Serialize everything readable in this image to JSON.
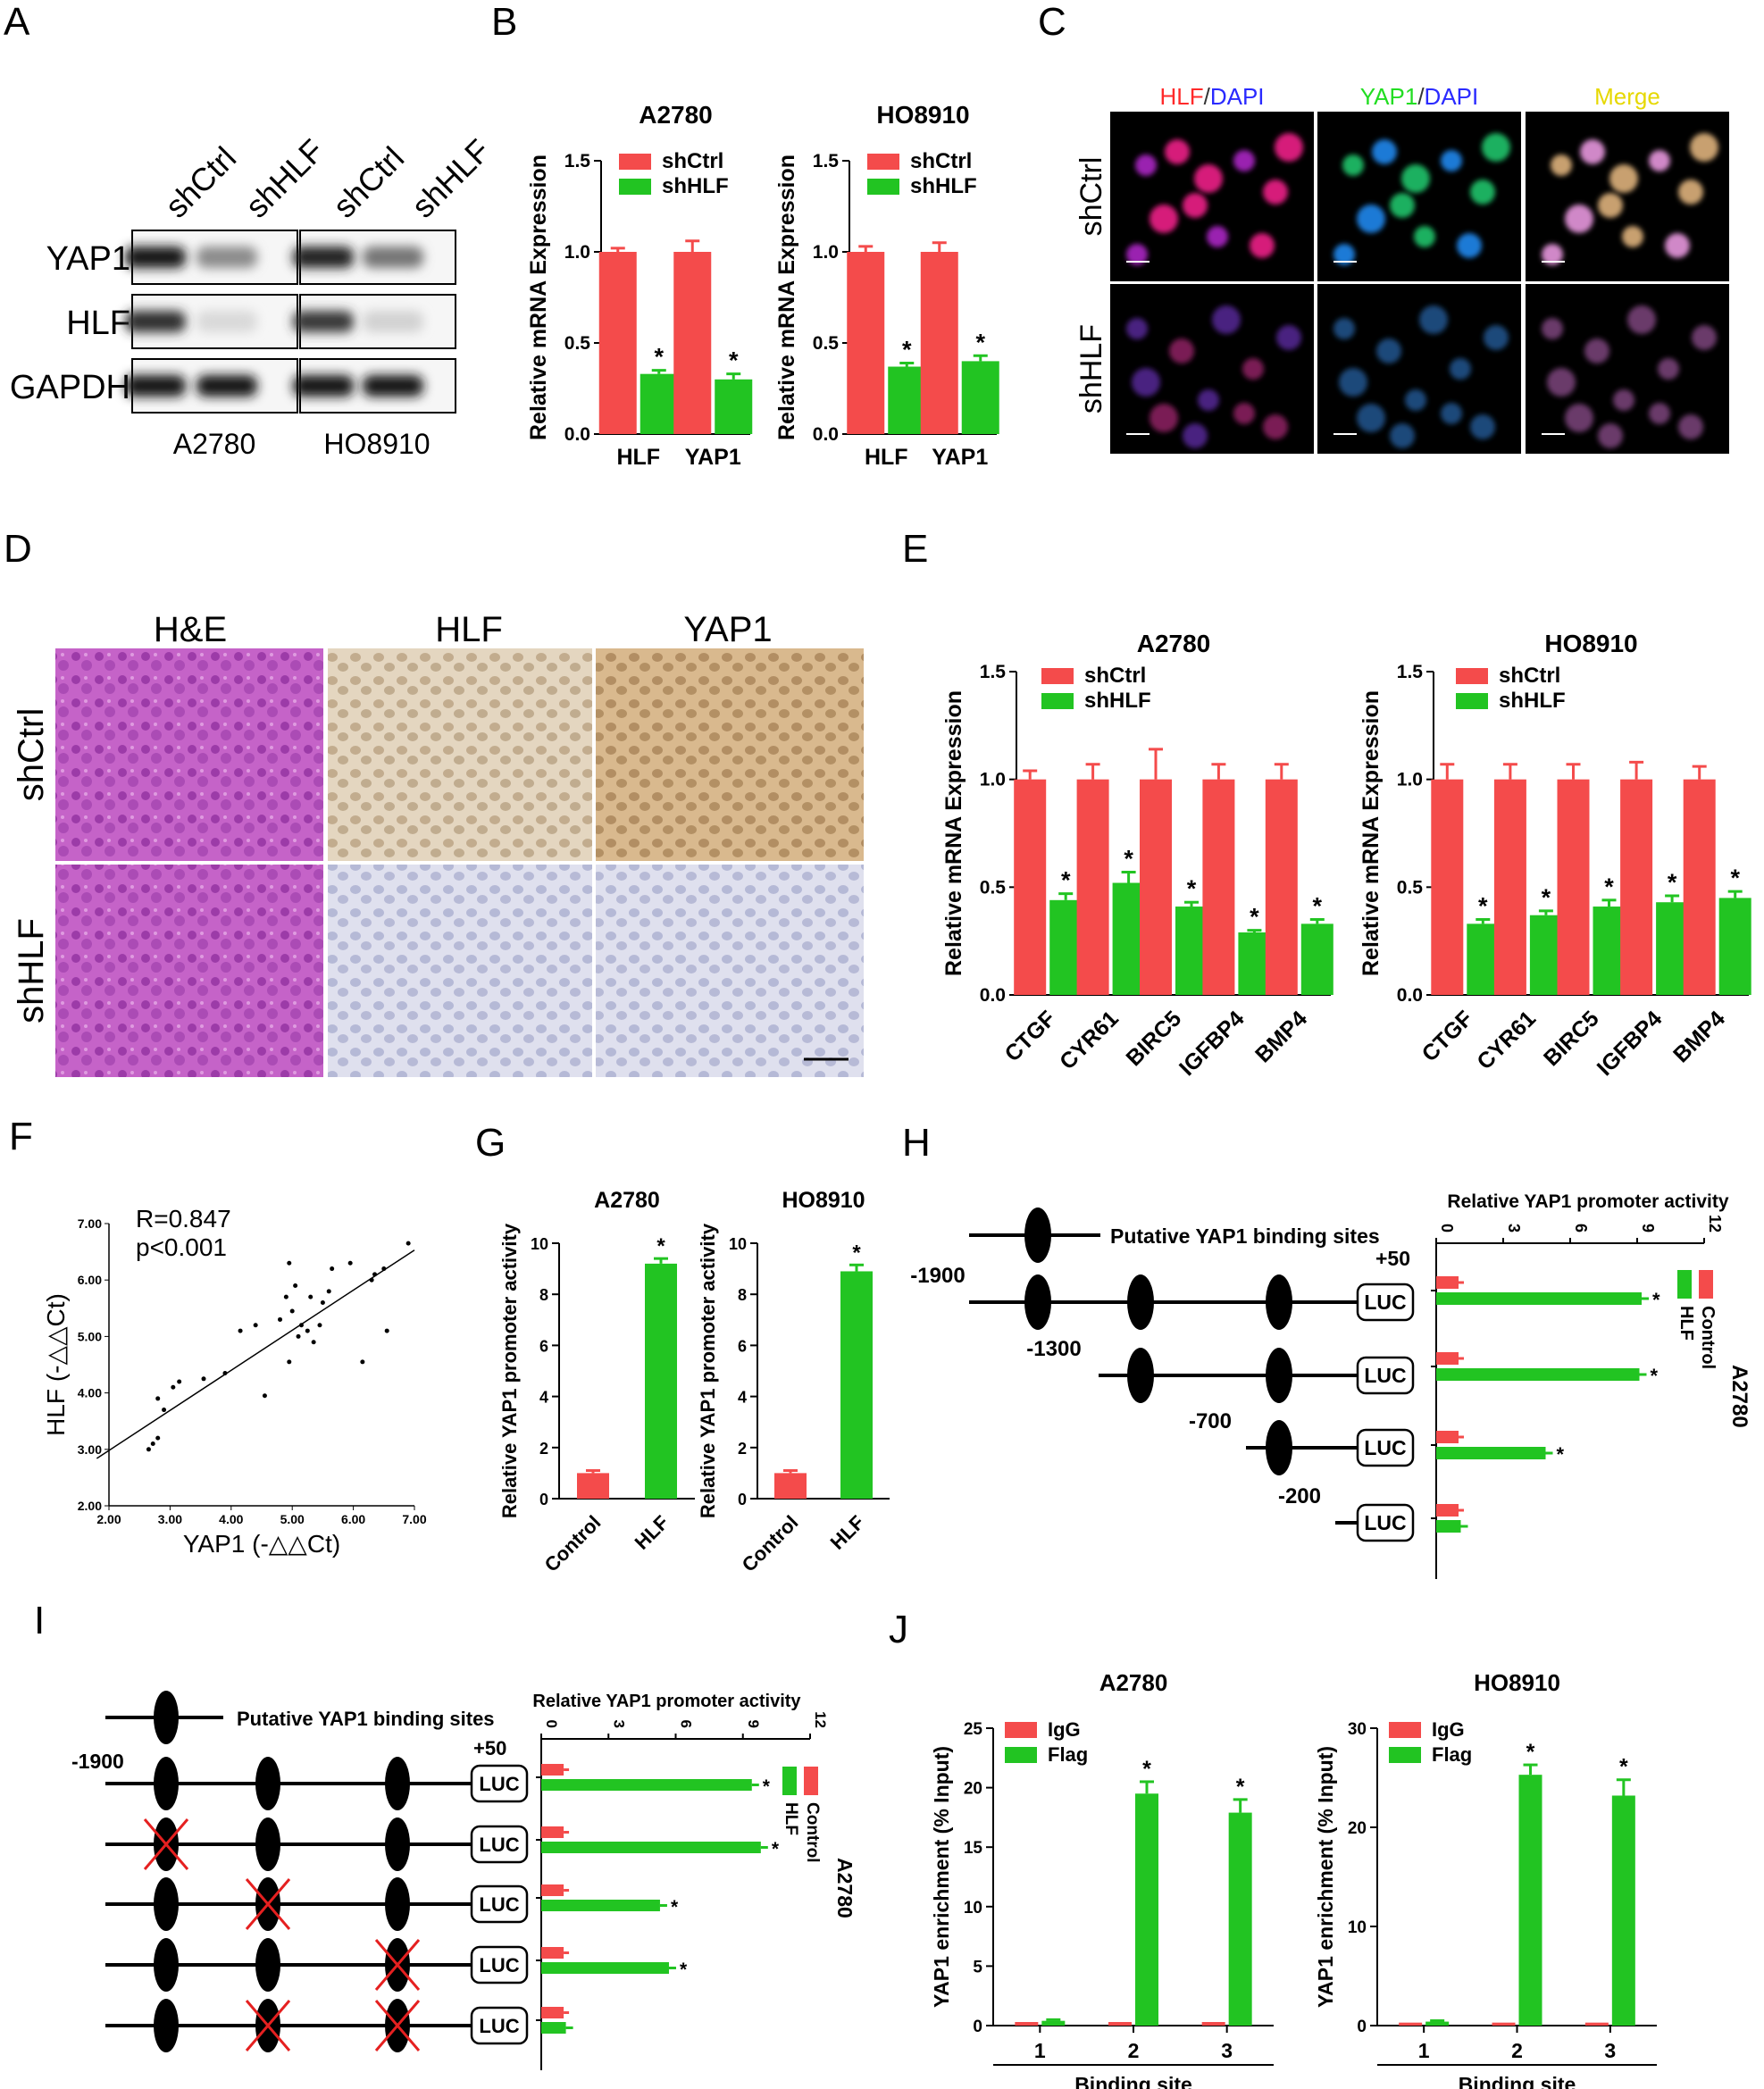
{
  "colors": {
    "red": "#f44b4b",
    "green": "#22c422",
    "black": "#111111",
    "micro_bg": "#000000"
  },
  "panels": {
    "A": "A",
    "B": "B",
    "C": "C",
    "D": "D",
    "E": "E",
    "F": "F",
    "G": "G",
    "H": "H",
    "I": "I",
    "J": "J"
  },
  "panelA": {
    "col_labels": [
      "shCtrl",
      "shHLF",
      "shCtrl",
      "shHLF"
    ],
    "row_labels": [
      "YAP1",
      "HLF",
      "GAPDH"
    ],
    "cell_lines": [
      "A2780",
      "HO8910"
    ],
    "band_intensity": [
      [
        0.95,
        0.45,
        0.9,
        0.55
      ],
      [
        0.85,
        0.12,
        0.8,
        0.15
      ],
      [
        0.95,
        0.95,
        0.95,
        0.95
      ]
    ]
  },
  "panelB": {
    "chart_data": [
      {
        "type": "bar",
        "title": "A2780",
        "ylabel": "Relative mRNA Expression",
        "ylim": [
          0,
          1.5
        ],
        "yticks": [
          "0.0",
          "0.5",
          "1.0",
          "1.5"
        ],
        "categories": [
          "HLF",
          "YAP1"
        ],
        "series": [
          {
            "name": "shCtrl",
            "values": [
              1.0,
              1.0
            ],
            "err": [
              0.02,
              0.06
            ]
          },
          {
            "name": "shHLF",
            "values": [
              0.33,
              0.3
            ],
            "err": [
              0.02,
              0.03
            ]
          }
        ],
        "stars": [
          "*",
          "*"
        ]
      },
      {
        "type": "bar",
        "title": "HO8910",
        "ylabel": "Relative mRNA Expression",
        "ylim": [
          0,
          1.5
        ],
        "yticks": [
          "0.0",
          "0.5",
          "1.0",
          "1.5"
        ],
        "categories": [
          "HLF",
          "YAP1"
        ],
        "series": [
          {
            "name": "shCtrl",
            "values": [
              1.0,
              1.0
            ],
            "err": [
              0.03,
              0.05
            ]
          },
          {
            "name": "shHLF",
            "values": [
              0.37,
              0.4
            ],
            "err": [
              0.02,
              0.03
            ]
          }
        ],
        "stars": [
          "*",
          "*"
        ]
      }
    ]
  },
  "panelC": {
    "col_titles": [
      [
        {
          "t": "HLF",
          "c": "#ff2a2a"
        },
        {
          "t": "/",
          "c": "#333333"
        },
        {
          "t": "DAPI",
          "c": "#2a2aff"
        }
      ],
      [
        {
          "t": "YAP1",
          "c": "#22dd22"
        },
        {
          "t": "/",
          "c": "#333333"
        },
        {
          "t": "DAPI",
          "c": "#2a2aff"
        }
      ],
      [
        {
          "t": "Merge",
          "c": "#e6d800"
        }
      ]
    ],
    "row_labels": [
      "shCtrl",
      "shHLF"
    ]
  },
  "panelD": {
    "col_titles": [
      "H&E",
      "HLF",
      "YAP1"
    ],
    "row_labels": [
      "shCtrl",
      "shHLF"
    ]
  },
  "panelE": {
    "chart_data": [
      {
        "type": "bar",
        "title": "A2780",
        "ylabel": "Relative mRNA Expression",
        "ylim": [
          0,
          1.5
        ],
        "yticks": [
          "0.0",
          "0.5",
          "1.0",
          "1.5"
        ],
        "categories": [
          "CTGF",
          "CYR61",
          "BIRC5",
          "IGFBP4",
          "BMP4"
        ],
        "series": [
          {
            "name": "shCtrl",
            "values": [
              1.0,
              1.0,
              1.0,
              1.0,
              1.0
            ],
            "err": [
              0.04,
              0.07,
              0.14,
              0.07,
              0.07
            ]
          },
          {
            "name": "shHLF",
            "values": [
              0.44,
              0.52,
              0.41,
              0.29,
              0.33
            ],
            "err": [
              0.03,
              0.05,
              0.02,
              0.01,
              0.02
            ]
          }
        ],
        "stars": [
          "*",
          "*",
          "*",
          "*",
          "*"
        ]
      },
      {
        "type": "bar",
        "title": "HO8910",
        "ylabel": "Relative mRNA Expression",
        "ylim": [
          0,
          1.5
        ],
        "yticks": [
          "0.0",
          "0.5",
          "1.0",
          "1.5"
        ],
        "categories": [
          "CTGF",
          "CYR61",
          "BIRC5",
          "IGFBP4",
          "BMP4"
        ],
        "series": [
          {
            "name": "shCtrl",
            "values": [
              1.0,
              1.0,
              1.0,
              1.0,
              1.0
            ],
            "err": [
              0.07,
              0.07,
              0.07,
              0.08,
              0.06
            ]
          },
          {
            "name": "shHLF",
            "values": [
              0.33,
              0.37,
              0.41,
              0.43,
              0.45
            ],
            "err": [
              0.02,
              0.02,
              0.03,
              0.03,
              0.03
            ]
          }
        ],
        "stars": [
          "*",
          "*",
          "*",
          "*",
          "*"
        ]
      }
    ]
  },
  "panelF": {
    "chart_data": {
      "type": "scatter",
      "xlabel": "YAP1 (-△△Ct)",
      "ylabel": "HLF (-△△Ct)",
      "xlim": [
        2.0,
        7.0
      ],
      "ylim": [
        2.0,
        7.0
      ],
      "xticks": [
        "2.00",
        "3.00",
        "4.00",
        "5.00",
        "6.00",
        "7.00"
      ],
      "yticks": [
        "2.00",
        "3.00",
        "4.00",
        "5.00",
        "6.00",
        "7.00"
      ],
      "annotation": [
        "R=0.847",
        "p<0.001"
      ],
      "fit": {
        "slope": 0.71,
        "intercept": 1.56
      },
      "points": [
        [
          2.65,
          3.0
        ],
        [
          2.72,
          3.1
        ],
        [
          2.8,
          3.2
        ],
        [
          2.8,
          3.9
        ],
        [
          2.9,
          3.7
        ],
        [
          3.05,
          4.1
        ],
        [
          3.15,
          4.2
        ],
        [
          3.55,
          4.25
        ],
        [
          3.9,
          4.35
        ],
        [
          4.15,
          5.1
        ],
        [
          4.4,
          5.2
        ],
        [
          4.55,
          3.95
        ],
        [
          4.8,
          5.3
        ],
        [
          4.9,
          5.7
        ],
        [
          4.95,
          4.55
        ],
        [
          5.0,
          5.45
        ],
        [
          5.05,
          5.9
        ],
        [
          5.1,
          5.0
        ],
        [
          5.15,
          5.2
        ],
        [
          5.25,
          5.1
        ],
        [
          5.3,
          5.7
        ],
        [
          5.35,
          4.9
        ],
        [
          5.45,
          5.2
        ],
        [
          5.5,
          5.6
        ],
        [
          5.6,
          5.8
        ],
        [
          5.65,
          6.2
        ],
        [
          5.95,
          6.3
        ],
        [
          6.15,
          4.55
        ],
        [
          6.3,
          6.0
        ],
        [
          6.35,
          6.1
        ],
        [
          6.5,
          6.2
        ],
        [
          6.55,
          5.1
        ],
        [
          6.9,
          6.65
        ],
        [
          4.95,
          6.3
        ]
      ]
    }
  },
  "panelG": {
    "chart_data": [
      {
        "type": "bar",
        "title": "A2780",
        "ylabel": "Relative YAP1 promoter activity",
        "ylim": [
          0,
          10
        ],
        "yticks": [
          "0",
          "2",
          "4",
          "6",
          "8",
          "10"
        ],
        "categories": [
          "Control",
          "HLF"
        ],
        "values": [
          1.0,
          9.2
        ],
        "err": [
          0.1,
          0.2
        ],
        "stars": [
          "",
          "*"
        ]
      },
      {
        "type": "bar",
        "title": "HO8910",
        "ylabel": "Relative YAP1 promoter activity",
        "ylim": [
          0,
          10
        ],
        "yticks": [
          "0",
          "2",
          "4",
          "6",
          "8",
          "10"
        ],
        "categories": [
          "Control",
          "HLF"
        ],
        "values": [
          1.0,
          8.9
        ],
        "err": [
          0.1,
          0.25
        ],
        "stars": [
          "",
          "*"
        ]
      }
    ]
  },
  "panelH": {
    "legend_site": "Putative YAP1 binding sites",
    "plus50": "+50",
    "luc": "LUC",
    "constructs": [
      {
        "label": "-1900",
        "sites": 3
      },
      {
        "label": "-1300",
        "sites": 2
      },
      {
        "label": "-700",
        "sites": 1
      },
      {
        "label": "-200",
        "sites": 0
      }
    ],
    "chart_data": {
      "type": "bar",
      "title": "Relative YAP1 promoter activity",
      "xlim": [
        0,
        12
      ],
      "xticks": [
        "0",
        "3",
        "6",
        "9",
        "12"
      ],
      "series": [
        {
          "name": "Control",
          "values": [
            1.0,
            1.0,
            1.0,
            1.0
          ]
        },
        {
          "name": "HLF",
          "values": [
            9.2,
            9.1,
            4.9,
            1.1
          ]
        }
      ],
      "stars": [
        "*",
        "*",
        "*",
        ""
      ]
    },
    "cell_line": "A2780"
  },
  "panelI": {
    "legend_site": "Putative YAP1 binding sites",
    "plus50": "+50",
    "label_1900": "-1900",
    "luc": "LUC",
    "mutations": [
      [
        false,
        false,
        false
      ],
      [
        true,
        false,
        false
      ],
      [
        false,
        true,
        false
      ],
      [
        false,
        false,
        true
      ],
      [
        false,
        true,
        true
      ]
    ],
    "chart_data": {
      "type": "bar",
      "title": "Relative YAP1 promoter activity",
      "xlim": [
        0,
        12
      ],
      "xticks": [
        "0",
        "3",
        "6",
        "9",
        "12"
      ],
      "series": [
        {
          "name": "Control",
          "values": [
            1.0,
            1.0,
            1.0,
            1.0,
            1.0
          ]
        },
        {
          "name": "HLF",
          "values": [
            9.4,
            9.8,
            5.3,
            5.7,
            1.1
          ]
        }
      ],
      "stars": [
        "*",
        "*",
        "*",
        "*",
        ""
      ]
    },
    "cell_line": "A2780"
  },
  "panelJ": {
    "chart_data": [
      {
        "type": "bar",
        "title": "A2780",
        "ylabel": "YAP1 enrichment (% Input)",
        "xlabel": "Binding site",
        "ylim": [
          0,
          25
        ],
        "yticks": [
          "0",
          "5",
          "10",
          "15",
          "20",
          "25"
        ],
        "categories": [
          "1",
          "2",
          "3"
        ],
        "series": [
          {
            "name": "IgG",
            "values": [
              0.3,
              0.3,
              0.3
            ]
          },
          {
            "name": "Flag",
            "values": [
              0.4,
              19.5,
              17.9
            ]
          }
        ],
        "err": [
          0.1,
          1.0,
          1.1
        ],
        "stars": [
          "",
          "*",
          "*"
        ]
      },
      {
        "type": "bar",
        "title": "HO8910",
        "ylabel": "YAP1 enrichment (% Input)",
        "xlabel": "Binding site",
        "ylim": [
          0,
          30
        ],
        "yticks": [
          "0",
          "10",
          "20",
          "30"
        ],
        "categories": [
          "1",
          "2",
          "3"
        ],
        "series": [
          {
            "name": "IgG",
            "values": [
              0.3,
              0.3,
              0.3
            ]
          },
          {
            "name": "Flag",
            "values": [
              0.4,
              25.3,
              23.2
            ]
          }
        ],
        "err": [
          0.1,
          1.0,
          1.6
        ],
        "stars": [
          "",
          "*",
          "*"
        ]
      }
    ]
  }
}
